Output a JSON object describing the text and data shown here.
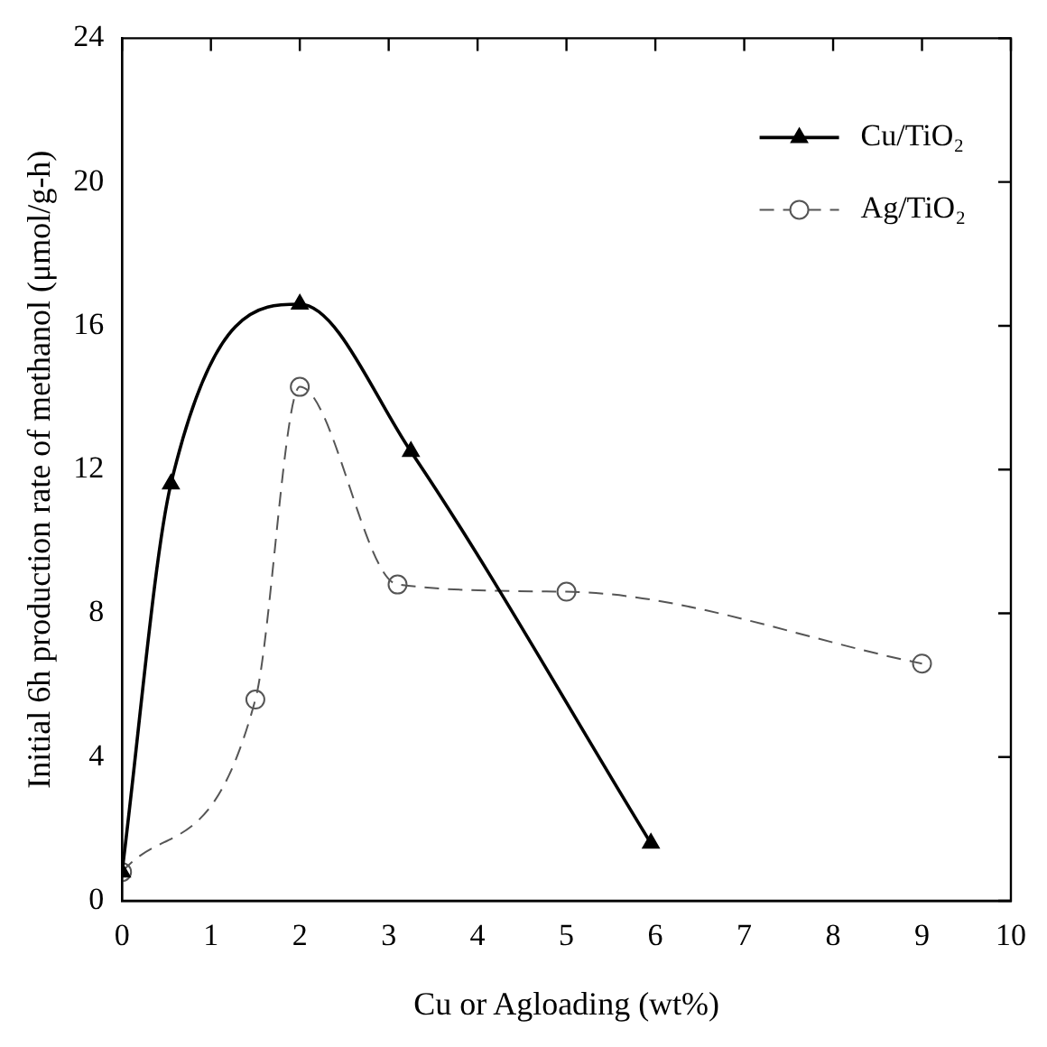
{
  "chart_data": {
    "type": "line",
    "xlabel": "Cu or Agloading (wt%)",
    "ylabel": "Initial 6h production rate of methanol (μmol/g-h)",
    "xlim": [
      0,
      10
    ],
    "xticks": [
      0,
      1,
      2,
      3,
      4,
      5,
      6,
      7,
      8,
      9,
      10
    ],
    "ylim": [
      0,
      24
    ],
    "yticks": [
      0,
      4,
      8,
      12,
      16,
      20,
      24
    ],
    "grid": false,
    "legend": "top right",
    "series": [
      {
        "name": "Cu/TiO₂",
        "color": "#000000",
        "marker": "triangle",
        "line_style": "solid",
        "x": [
          0,
          0.55,
          2,
          3.25,
          5.95
        ],
        "values": [
          0.8,
          11.6,
          16.6,
          12.5,
          1.6
        ]
      },
      {
        "name": "Ag/TiO₂",
        "color": "#555555",
        "marker": "circle",
        "line_style": "dashed",
        "x": [
          0,
          1.5,
          2,
          3.1,
          5,
          9
        ],
        "values": [
          0.8,
          5.6,
          14.3,
          8.8,
          8.6,
          6.6
        ]
      }
    ]
  }
}
